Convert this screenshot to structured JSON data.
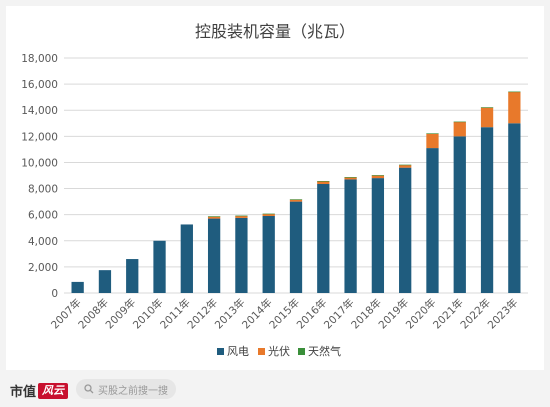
{
  "chart_data": {
    "type": "bar",
    "stacked": true,
    "title": "控股装机容量（兆瓦）",
    "categories": [
      "2007年",
      "2008年",
      "2009年",
      "2010年",
      "2011年",
      "2012年",
      "2013年",
      "2014年",
      "2015年",
      "2016年",
      "2017年",
      "2018年",
      "2019年",
      "2020年",
      "2021年",
      "2022年",
      "2023年"
    ],
    "series": [
      {
        "name": "风电",
        "color": "#1f5c7e",
        "values": [
          850,
          1750,
          2600,
          4000,
          5250,
          5700,
          5750,
          5900,
          7000,
          8350,
          8700,
          8800,
          9600,
          11100,
          12000,
          12700,
          13000
        ]
      },
      {
        "name": "光伏",
        "color": "#e8792b",
        "values": [
          0,
          0,
          0,
          0,
          0,
          150,
          150,
          150,
          150,
          200,
          150,
          200,
          200,
          1100,
          1100,
          1500,
          2400
        ]
      },
      {
        "name": "天然气",
        "color": "#3a8f3a",
        "values": [
          0,
          0,
          0,
          0,
          0,
          30,
          30,
          30,
          30,
          30,
          30,
          30,
          30,
          30,
          30,
          30,
          30
        ]
      }
    ],
    "ylim": [
      0,
      18000
    ],
    "yticks": [
      "0",
      "2,000",
      "4,000",
      "6,000",
      "8,000",
      "10,000",
      "12,000",
      "14,000",
      "16,000",
      "18,000"
    ],
    "grid": true,
    "legend_position": "bottom"
  },
  "footer": {
    "brand_text": "市值",
    "brand_mark": "风云",
    "search_placeholder": "买股之前搜一搜"
  }
}
